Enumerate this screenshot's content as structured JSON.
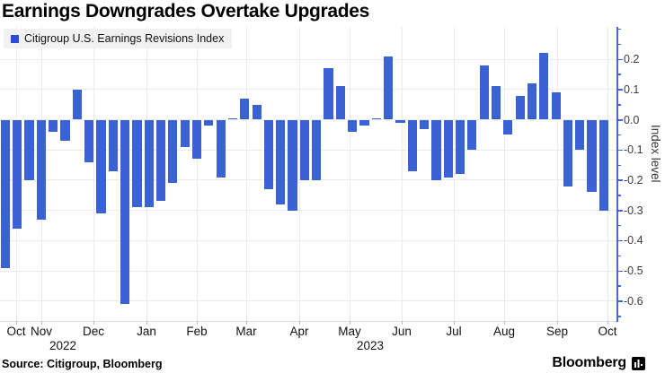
{
  "title": "Earnings Downgrades Overtake Upgrades",
  "legend": {
    "label": "Citigroup U.S. Earnings Revisions Index",
    "swatch_color": "#2b4ec9"
  },
  "y_axis": {
    "label": "Index level",
    "tick_labels": [
      "0.2",
      "0.1",
      "0.0",
      "-0.1",
      "-0.2",
      "-0.3",
      "-0.4",
      "-0.5",
      "-0.6"
    ]
  },
  "x_axis": {
    "months": [
      "Oct",
      "Nov",
      "Dec",
      "Jan",
      "Feb",
      "Mar",
      "Apr",
      "May",
      "Jun",
      "Jul",
      "Aug",
      "Sep",
      "Oct"
    ],
    "years": [
      "2022",
      "2023"
    ]
  },
  "footer": {
    "source": "Source: Citigroup, Bloomberg",
    "brand": "Bloomberg"
  },
  "colors": {
    "bar": "#3a62d4",
    "axis": "#4169d0",
    "gridline": "#ebebeb",
    "text": "#111111"
  },
  "chart_data": {
    "type": "bar",
    "title": "Earnings Downgrades Overtake Upgrades",
    "series_name": "Citigroup U.S. Earnings Revisions Index",
    "x_unit": "weekly observations, Oct 2022 - Oct 2023",
    "months": [
      "Oct",
      "Nov",
      "Dec",
      "Jan",
      "Feb",
      "Mar",
      "Apr",
      "May",
      "Jun",
      "Jul",
      "Aug",
      "Sep",
      "Oct"
    ],
    "years": [
      {
        "label": "2022",
        "anchor_month": "Nov"
      },
      {
        "label": "2023",
        "anchor_month": "May"
      }
    ],
    "values": [
      -0.49,
      -0.36,
      -0.2,
      -0.33,
      -0.04,
      -0.07,
      0.1,
      -0.14,
      -0.31,
      -0.17,
      -0.61,
      -0.29,
      -0.29,
      -0.27,
      -0.21,
      -0.09,
      -0.13,
      -0.02,
      -0.19,
      0.005,
      0.07,
      0.05,
      -0.23,
      -0.28,
      -0.3,
      -0.2,
      -0.2,
      0.17,
      0.11,
      -0.04,
      -0.02,
      0.005,
      0.21,
      -0.01,
      -0.17,
      -0.03,
      -0.2,
      -0.19,
      -0.18,
      -0.1,
      0.18,
      0.11,
      -0.05,
      0.08,
      0.12,
      0.22,
      0.09,
      -0.22,
      -0.1,
      -0.24,
      -0.3
    ],
    "ylabel": "Index level",
    "yticks": [
      0.2,
      0.1,
      0.0,
      -0.1,
      -0.2,
      -0.3,
      -0.4,
      -0.5,
      -0.6
    ],
    "ylim": [
      -0.667,
      0.3
    ],
    "grid": true,
    "legend_position": "top-left"
  }
}
